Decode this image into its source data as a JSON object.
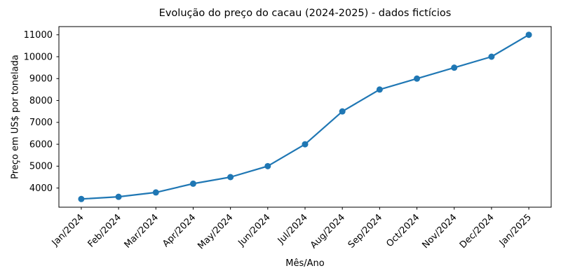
{
  "chart_data": {
    "type": "line",
    "title": "Evolução do preço do cacau (2024-2025) - dados fictícios",
    "xlabel": "Mês/Ano",
    "ylabel": "Preço em US$ por tonelada",
    "categories": [
      "Jan/2024",
      "Feb/2024",
      "Mar/2024",
      "Apr/2024",
      "May/2024",
      "Jun/2024",
      "Jul/2024",
      "Aug/2024",
      "Sep/2024",
      "Oct/2024",
      "Nov/2024",
      "Dec/2024",
      "Jan/2025"
    ],
    "values": [
      3500,
      3600,
      3800,
      4200,
      4500,
      5000,
      6000,
      7500,
      8500,
      9000,
      9500,
      10000,
      11000
    ],
    "yticks": [
      4000,
      5000,
      6000,
      7000,
      8000,
      9000,
      10000,
      11000
    ],
    "ylim": [
      3125,
      11375
    ],
    "xlim_index_margin": 0.6,
    "x_tick_rotation_deg": 45,
    "grid": false,
    "legend": "none",
    "line_color": "#1f77b4",
    "marker": "circle",
    "axis_color": "#000000",
    "background": "#ffffff"
  }
}
